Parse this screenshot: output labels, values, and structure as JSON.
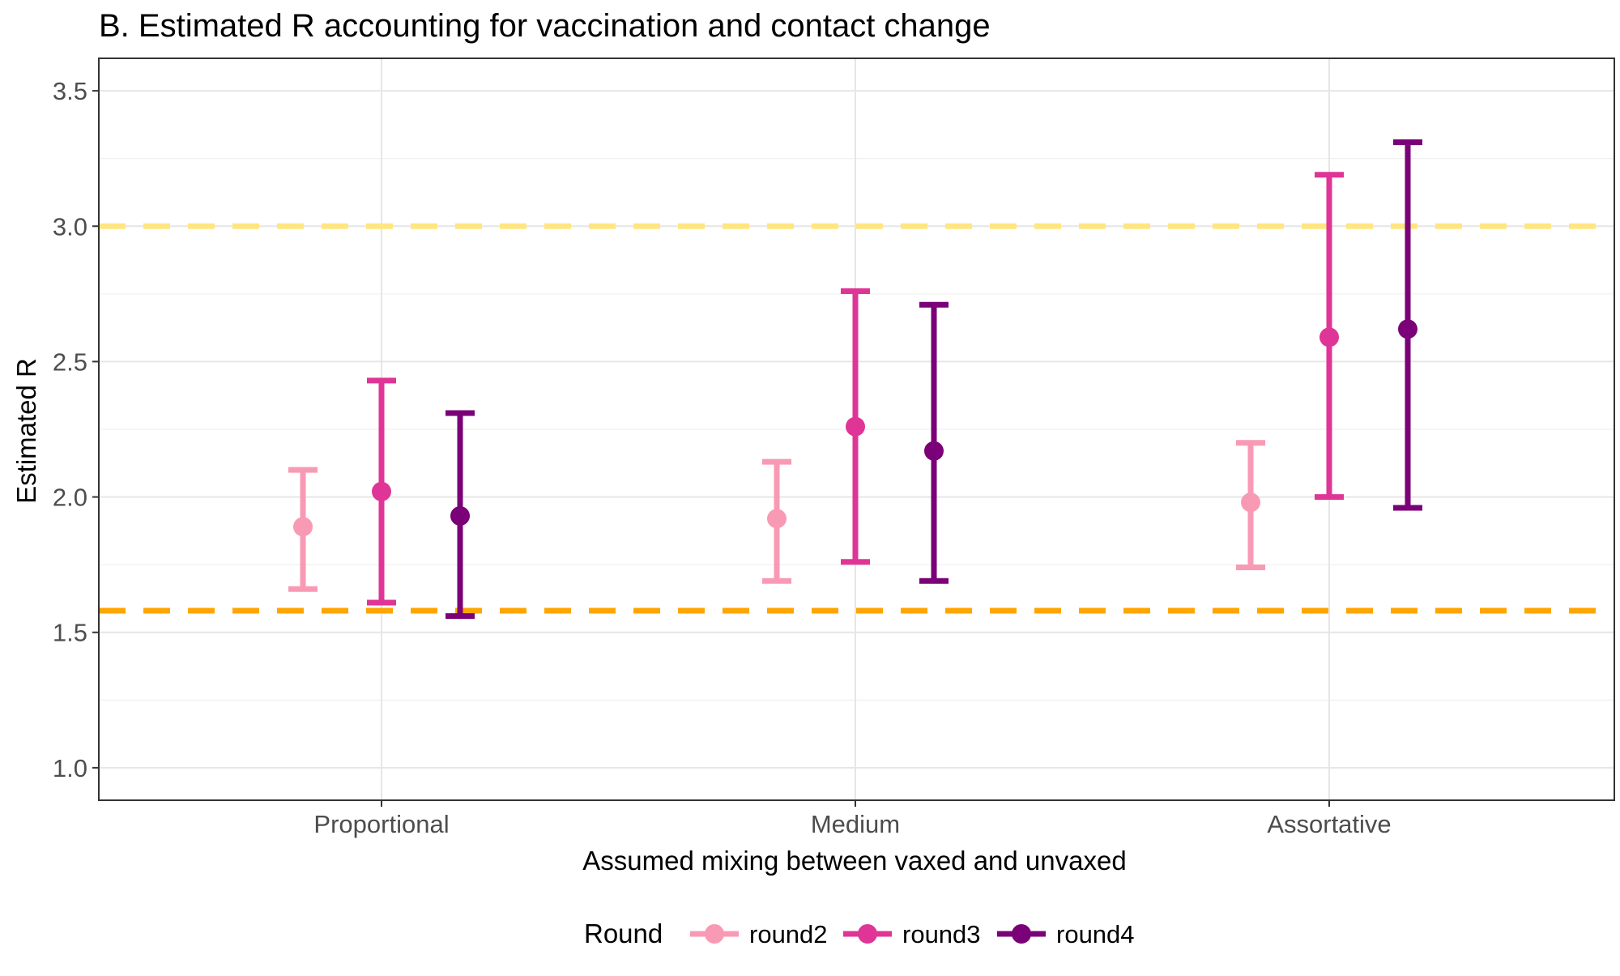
{
  "chart_data": {
    "type": "scatter",
    "title": "B. Estimated R accounting for vaccination and contact change",
    "xlabel": "Assumed mixing between vaxed and unvaxed",
    "ylabel": "Estimated R",
    "categories": [
      "Proportional",
      "Medium",
      "Assortative"
    ],
    "ylim": [
      0.88,
      3.62
    ],
    "yticks": [
      1.0,
      1.5,
      2.0,
      2.5,
      3.0,
      3.5
    ],
    "ytick_labels": [
      "1.0",
      "1.5",
      "2.0",
      "2.5",
      "3.0",
      "3.5"
    ],
    "grid": true,
    "legend": {
      "title": "Round",
      "position": "bottom"
    },
    "series": [
      {
        "name": "round2",
        "color": "#f99ab5",
        "points": [
          {
            "category": "Proportional",
            "estimate": 1.89,
            "lower": 1.66,
            "upper": 2.1
          },
          {
            "category": "Medium",
            "estimate": 1.92,
            "lower": 1.69,
            "upper": 2.13
          },
          {
            "category": "Assortative",
            "estimate": 1.98,
            "lower": 1.74,
            "upper": 2.2
          }
        ]
      },
      {
        "name": "round3",
        "color": "#df3596",
        "points": [
          {
            "category": "Proportional",
            "estimate": 2.02,
            "lower": 1.61,
            "upper": 2.43
          },
          {
            "category": "Medium",
            "estimate": 2.26,
            "lower": 1.76,
            "upper": 2.76
          },
          {
            "category": "Assortative",
            "estimate": 2.59,
            "lower": 2.0,
            "upper": 3.19
          }
        ]
      },
      {
        "name": "round4",
        "color": "#7a0177",
        "points": [
          {
            "category": "Proportional",
            "estimate": 1.93,
            "lower": 1.56,
            "upper": 2.31
          },
          {
            "category": "Medium",
            "estimate": 2.17,
            "lower": 1.69,
            "upper": 2.71
          },
          {
            "category": "Assortative",
            "estimate": 2.62,
            "lower": 1.96,
            "upper": 3.31
          }
        ]
      }
    ],
    "reference_lines": [
      {
        "y": 3.0,
        "color": "#ffe680",
        "style": "dashed"
      },
      {
        "y": 1.58,
        "color": "#ffa500",
        "style": "dashed"
      }
    ]
  }
}
